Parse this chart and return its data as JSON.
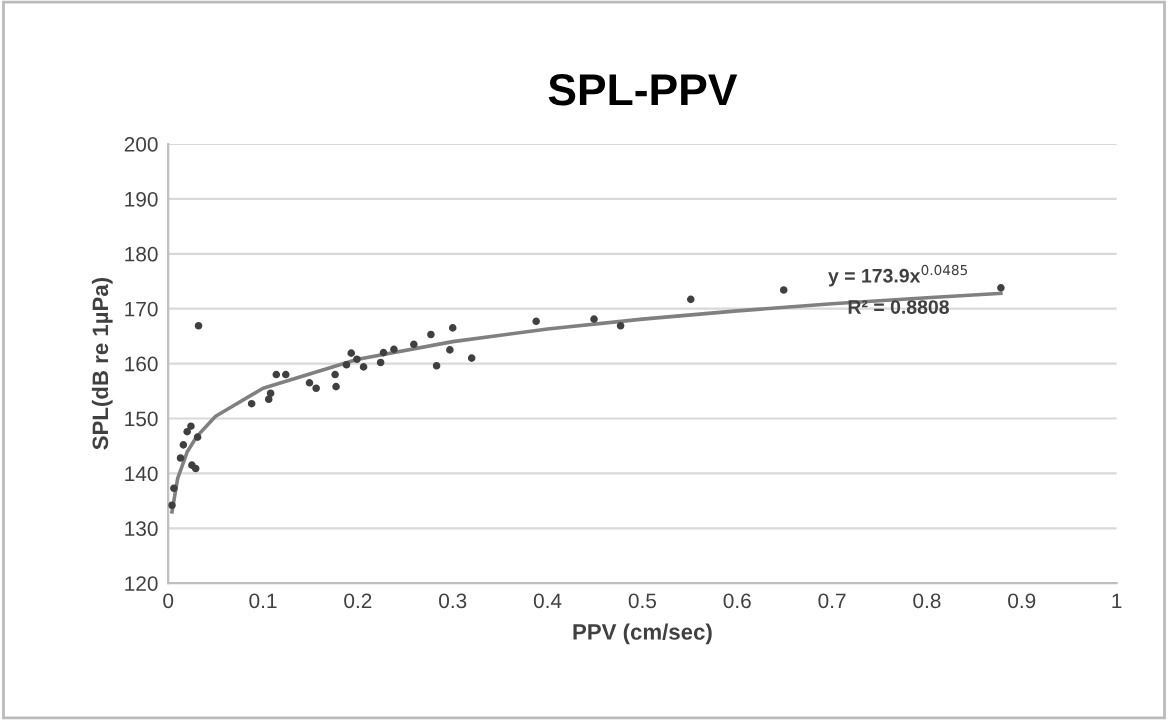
{
  "chart_data": {
    "type": "scatter",
    "title": "SPL-PPV",
    "xlabel": "PPV (cm/sec)",
    "ylabel": "SPL(dB re 1µPa)",
    "series": [
      {
        "color": "#404040",
        "marker": "circle",
        "x": [
          0.004,
          0.006,
          0.013,
          0.016,
          0.02,
          0.024,
          0.025,
          0.029,
          0.031,
          0.032,
          0.088,
          0.106,
          0.108,
          0.114,
          0.124,
          0.149,
          0.156,
          0.176,
          0.177,
          0.188,
          0.193,
          0.199,
          0.206,
          0.224,
          0.227,
          0.238,
          0.259,
          0.277,
          0.283,
          0.297,
          0.3,
          0.32,
          0.388,
          0.449,
          0.477,
          0.551,
          0.649,
          0.878
        ],
        "values": [
          134.2,
          137.3,
          142.8,
          145.2,
          147.6,
          148.6,
          141.5,
          140.9,
          146.6,
          166.9,
          152.7,
          153.5,
          154.6,
          158.0,
          158.0,
          156.5,
          155.5,
          158.0,
          155.8,
          159.8,
          161.9,
          160.8,
          159.4,
          160.2,
          162.0,
          162.6,
          163.5,
          165.3,
          159.6,
          162.5,
          166.5,
          161.0,
          167.7,
          168.1,
          166.9,
          171.7,
          173.4,
          173.8
        ]
      },
      {
        "type": "line",
        "color": "#808080",
        "marker": "none",
        "line_style": "solid",
        "x": [
          0.004,
          0.01,
          0.02,
          0.03,
          0.05,
          0.1,
          0.2,
          0.3,
          0.4,
          0.5,
          0.6,
          0.7,
          0.8,
          0.878
        ],
        "values": [
          133.0,
          139.1,
          143.9,
          146.7,
          150.4,
          155.5,
          160.8,
          164.0,
          166.3,
          168.1,
          169.6,
          170.9,
          172.0,
          172.8
        ]
      }
    ],
    "annotations": [
      "y = 173.9x$^{0.0485}$",
      "R² = 0.8808"
    ],
    "xlim": [
      0,
      1
    ],
    "xticks": [
      0,
      0.1,
      0.2,
      0.3,
      0.4,
      0.5,
      0.6,
      0.7,
      0.8,
      0.9,
      1
    ],
    "ylim": [
      120,
      200
    ],
    "yticks": [
      120,
      130,
      140,
      150,
      160,
      170,
      180,
      190,
      200
    ],
    "grid": "y",
    "legend": false
  }
}
